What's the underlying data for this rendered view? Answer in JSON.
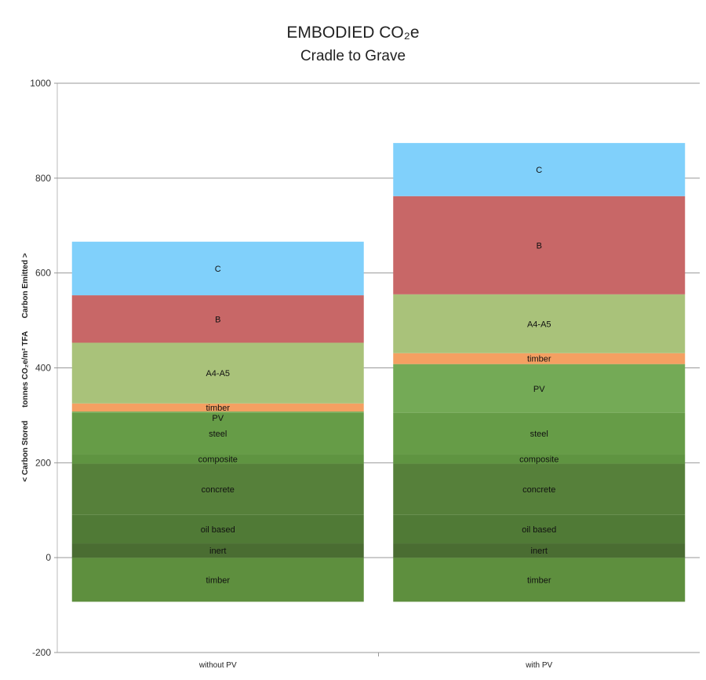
{
  "chart_data": {
    "type": "bar",
    "stacked": true,
    "title": "EMBODIED CO₂e",
    "subtitle": "Cradle to Grave",
    "ylabel": "< Carbon Stored      tonnes CO₂e/m² TFA      Carbon Emitted >",
    "xlabel": "",
    "ylim": [
      -200,
      1000
    ],
    "yticks": [
      -200,
      0,
      200,
      400,
      600,
      800,
      1000
    ],
    "grid": true,
    "legend": "none",
    "categories": [
      "without PV",
      "with PV"
    ],
    "series": [
      {
        "name": "timber",
        "color": "#5e8f3e",
        "values": [
          -93,
          -93
        ]
      },
      {
        "name": "inert",
        "color": "#4a6d32",
        "values": [
          30,
          30
        ]
      },
      {
        "name": "oil based",
        "color": "#507a36",
        "values": [
          60,
          60
        ]
      },
      {
        "name": "concrete",
        "color": "#56803a",
        "values": [
          108,
          108
        ]
      },
      {
        "name": "composite",
        "color": "#5f9441",
        "values": [
          20,
          20
        ]
      },
      {
        "name": "steel",
        "color": "#669c47",
        "values": [
          87,
          87
        ]
      },
      {
        "name": "PV",
        "color": "#74aa56",
        "values": [
          3,
          103
        ]
      },
      {
        "name": "timber",
        "color": "#f4a062",
        "values": [
          17,
          23
        ]
      },
      {
        "name": "A4-A5",
        "color": "#a9c27a",
        "values": [
          128,
          124
        ]
      },
      {
        "name": "B",
        "color": "#c86767",
        "values": [
          100,
          207
        ]
      },
      {
        "name": "C",
        "color": "#80d0fb",
        "values": [
          113,
          112
        ]
      }
    ]
  }
}
